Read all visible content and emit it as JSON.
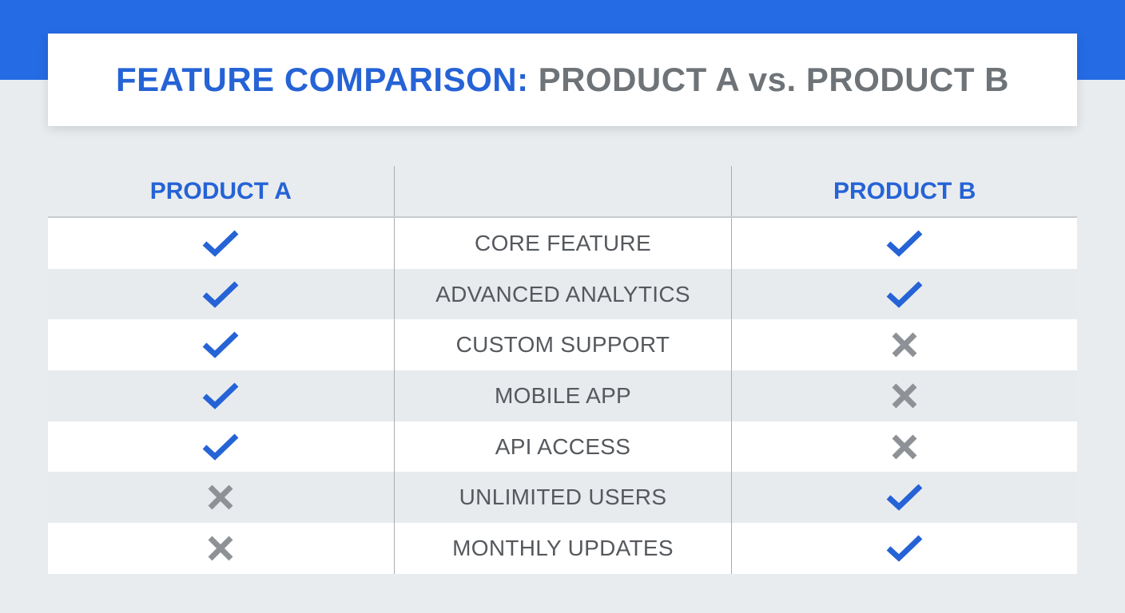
{
  "title": {
    "highlight": "FEATURE COMPARISON:",
    "rest": "PRODUCT A vs. PRODUCT B"
  },
  "headers": {
    "product_a": "PRODUCT A",
    "feature": "",
    "product_b": "PRODUCT B"
  },
  "colors": {
    "accent": "#256be3",
    "check": "#2563d6",
    "cross": "#8e9296"
  },
  "rows": [
    {
      "feature": "CORE FEATURE",
      "a": "check-icon",
      "b": "check-icon"
    },
    {
      "feature": "ADVANCED ANALYTICS",
      "a": "check-icon",
      "b": "check-icon"
    },
    {
      "feature": "CUSTOM SUPPORT",
      "a": "check-icon",
      "b": "cross-icon"
    },
    {
      "feature": "MOBILE APP",
      "a": "check-icon",
      "b": "cross-icon"
    },
    {
      "feature": "API ACCESS",
      "a": "check-icon",
      "b": "cross-icon"
    },
    {
      "feature": "UNLIMITED USERS",
      "a": "cross-icon",
      "b": "check-icon"
    },
    {
      "feature": "MONTHLY UPDATES",
      "a": "cross-icon",
      "b": "check-icon"
    }
  ]
}
